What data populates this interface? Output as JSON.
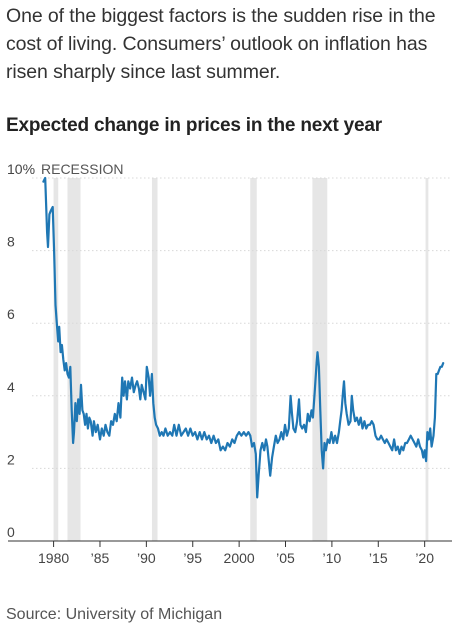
{
  "intro_text": "One of the biggest factors is the sudden rise in the cost of living. Consumers’ outlook on inflation has risen sharply since last summer.",
  "source": "Source: University of Michigan",
  "chart_data": {
    "type": "line",
    "title": "Expected change in prices in the next year",
    "xlabel": "",
    "ylabel": "",
    "ylim": [
      0,
      10
    ],
    "xlim": [
      1978.75,
      2022.3
    ],
    "y_ticks": [
      {
        "value": 0,
        "label": "0"
      },
      {
        "value": 2,
        "label": "2"
      },
      {
        "value": 4,
        "label": "4"
      },
      {
        "value": 6,
        "label": "6"
      },
      {
        "value": 8,
        "label": "8"
      },
      {
        "value": 10,
        "label": "10%"
      }
    ],
    "x_ticks": [
      {
        "value": 1980,
        "label": "1980"
      },
      {
        "value": 1985,
        "label": "’85"
      },
      {
        "value": 1990,
        "label": "’90"
      },
      {
        "value": 1995,
        "label": "’95"
      },
      {
        "value": 2000,
        "label": "2000"
      },
      {
        "value": 2005,
        "label": "’05"
      },
      {
        "value": 2010,
        "label": "’10"
      },
      {
        "value": 2015,
        "label": "’15"
      },
      {
        "value": 2020,
        "label": "’20"
      }
    ],
    "recession_label": "RECESSION",
    "recessions": [
      [
        1980.0,
        1980.5
      ],
      [
        1981.5,
        1982.9
      ],
      [
        1990.6,
        1991.2
      ],
      [
        2001.2,
        2001.9
      ],
      [
        2007.9,
        2009.5
      ],
      [
        2020.1,
        2020.4
      ]
    ],
    "grid": true,
    "line_color": "#1f77b4",
    "recession_color": "#e6e6e6",
    "series": [
      {
        "values": [
          [
            1978.9,
            9.9
          ],
          [
            1979.1,
            10.0
          ],
          [
            1979.3,
            8.5
          ],
          [
            1979.4,
            8.1
          ],
          [
            1979.55,
            9.0
          ],
          [
            1979.7,
            9.1
          ],
          [
            1979.9,
            9.2
          ],
          [
            1980.05,
            8.0
          ],
          [
            1980.2,
            6.5
          ],
          [
            1980.35,
            6.0
          ],
          [
            1980.5,
            5.5
          ],
          [
            1980.6,
            5.9
          ],
          [
            1980.75,
            5.2
          ],
          [
            1980.9,
            5.4
          ],
          [
            1981.05,
            5.0
          ],
          [
            1981.2,
            4.7
          ],
          [
            1981.35,
            4.9
          ],
          [
            1981.5,
            4.6
          ],
          [
            1981.65,
            4.5
          ],
          [
            1981.8,
            4.8
          ],
          [
            1981.95,
            3.6
          ],
          [
            1982.1,
            2.7
          ],
          [
            1982.2,
            3.0
          ],
          [
            1982.35,
            3.8
          ],
          [
            1982.5,
            3.3
          ],
          [
            1982.65,
            3.9
          ],
          [
            1982.8,
            3.5
          ],
          [
            1982.95,
            4.3
          ],
          [
            1983.1,
            3.6
          ],
          [
            1983.25,
            3.5
          ],
          [
            1983.4,
            3.2
          ],
          [
            1983.55,
            3.5
          ],
          [
            1983.7,
            3.1
          ],
          [
            1983.85,
            3.4
          ],
          [
            1984.0,
            3.3
          ],
          [
            1984.2,
            2.9
          ],
          [
            1984.35,
            3.3
          ],
          [
            1984.55,
            3.0
          ],
          [
            1984.75,
            3.2
          ],
          [
            1985.0,
            2.8
          ],
          [
            1985.2,
            3.1
          ],
          [
            1985.4,
            2.9
          ],
          [
            1985.6,
            3.2
          ],
          [
            1985.8,
            3.0
          ],
          [
            1986.0,
            2.9
          ],
          [
            1986.2,
            3.3
          ],
          [
            1986.4,
            3.2
          ],
          [
            1986.6,
            3.5
          ],
          [
            1986.8,
            3.3
          ],
          [
            1987.0,
            3.8
          ],
          [
            1987.2,
            3.4
          ],
          [
            1987.4,
            4.5
          ],
          [
            1987.55,
            4.0
          ],
          [
            1987.7,
            4.4
          ],
          [
            1987.9,
            3.9
          ],
          [
            1988.05,
            4.4
          ],
          [
            1988.25,
            4.2
          ],
          [
            1988.45,
            4.5
          ],
          [
            1988.65,
            4.1
          ],
          [
            1988.85,
            4.3
          ],
          [
            1989.0,
            4.4
          ],
          [
            1989.2,
            4.2
          ],
          [
            1989.35,
            3.9
          ],
          [
            1989.5,
            4.3
          ],
          [
            1989.7,
            4.1
          ],
          [
            1989.9,
            3.9
          ],
          [
            1990.05,
            4.8
          ],
          [
            1990.25,
            4.5
          ],
          [
            1990.4,
            4.0
          ],
          [
            1990.6,
            4.6
          ],
          [
            1990.75,
            3.8
          ],
          [
            1990.9,
            3.4
          ],
          [
            1991.05,
            3.2
          ],
          [
            1991.25,
            3.1
          ],
          [
            1991.45,
            2.9
          ],
          [
            1991.65,
            3.0
          ],
          [
            1991.85,
            2.9
          ],
          [
            1992.05,
            3.1
          ],
          [
            1992.3,
            2.9
          ],
          [
            1992.55,
            3.0
          ],
          [
            1992.8,
            2.9
          ],
          [
            1993.0,
            3.2
          ],
          [
            1993.25,
            2.9
          ],
          [
            1993.5,
            3.2
          ],
          [
            1993.75,
            2.9
          ],
          [
            1994.0,
            3.0
          ],
          [
            1994.25,
            3.1
          ],
          [
            1994.5,
            2.9
          ],
          [
            1994.75,
            3.1
          ],
          [
            1995.0,
            2.9
          ],
          [
            1995.25,
            3.0
          ],
          [
            1995.5,
            2.8
          ],
          [
            1995.75,
            3.0
          ],
          [
            1996.0,
            2.8
          ],
          [
            1996.25,
            3.0
          ],
          [
            1996.5,
            2.8
          ],
          [
            1996.75,
            2.9
          ],
          [
            1997.0,
            2.7
          ],
          [
            1997.25,
            2.9
          ],
          [
            1997.5,
            2.7
          ],
          [
            1997.75,
            2.8
          ],
          [
            1998.0,
            2.5
          ],
          [
            1998.25,
            2.6
          ],
          [
            1998.5,
            2.5
          ],
          [
            1998.75,
            2.7
          ],
          [
            1999.0,
            2.6
          ],
          [
            1999.25,
            2.8
          ],
          [
            1999.5,
            2.7
          ],
          [
            1999.75,
            2.9
          ],
          [
            2000.0,
            3.0
          ],
          [
            2000.25,
            2.9
          ],
          [
            2000.5,
            3.0
          ],
          [
            2000.75,
            2.9
          ],
          [
            2001.0,
            3.0
          ],
          [
            2001.2,
            2.9
          ],
          [
            2001.4,
            2.6
          ],
          [
            2001.6,
            2.7
          ],
          [
            2001.8,
            2.4
          ],
          [
            2001.95,
            1.2
          ],
          [
            2002.1,
            1.8
          ],
          [
            2002.3,
            2.5
          ],
          [
            2002.5,
            2.7
          ],
          [
            2002.7,
            2.5
          ],
          [
            2002.9,
            2.8
          ],
          [
            2003.05,
            2.6
          ],
          [
            2003.2,
            2.2
          ],
          [
            2003.35,
            1.8
          ],
          [
            2003.55,
            2.3
          ],
          [
            2003.75,
            2.6
          ],
          [
            2003.95,
            2.9
          ],
          [
            2004.15,
            2.7
          ],
          [
            2004.35,
            2.8
          ],
          [
            2004.55,
            3.0
          ],
          [
            2004.75,
            2.8
          ],
          [
            2004.95,
            3.2
          ],
          [
            2005.15,
            2.9
          ],
          [
            2005.35,
            3.1
          ],
          [
            2005.55,
            4.0
          ],
          [
            2005.7,
            3.5
          ],
          [
            2005.85,
            3.1
          ],
          [
            2006.05,
            3.0
          ],
          [
            2006.25,
            3.3
          ],
          [
            2006.45,
            3.9
          ],
          [
            2006.6,
            3.2
          ],
          [
            2006.8,
            3.1
          ],
          [
            2007.0,
            3.2
          ],
          [
            2007.2,
            3.0
          ],
          [
            2007.4,
            3.5
          ],
          [
            2007.6,
            3.3
          ],
          [
            2007.8,
            3.6
          ],
          [
            2007.95,
            3.4
          ],
          [
            2008.15,
            4.1
          ],
          [
            2008.35,
            4.9
          ],
          [
            2008.45,
            5.2
          ],
          [
            2008.6,
            4.8
          ],
          [
            2008.75,
            3.6
          ],
          [
            2008.9,
            2.5
          ],
          [
            2009.05,
            2.0
          ],
          [
            2009.2,
            2.7
          ],
          [
            2009.35,
            2.5
          ],
          [
            2009.55,
            2.8
          ],
          [
            2009.75,
            2.7
          ],
          [
            2009.95,
            3.0
          ],
          [
            2010.15,
            2.7
          ],
          [
            2010.35,
            2.9
          ],
          [
            2010.55,
            2.7
          ],
          [
            2010.75,
            3.0
          ],
          [
            2010.9,
            3.3
          ],
          [
            2011.05,
            3.6
          ],
          [
            2011.2,
            4.1
          ],
          [
            2011.3,
            4.4
          ],
          [
            2011.45,
            3.8
          ],
          [
            2011.6,
            3.5
          ],
          [
            2011.8,
            3.2
          ],
          [
            2012.0,
            3.3
          ],
          [
            2012.15,
            4.0
          ],
          [
            2012.3,
            3.6
          ],
          [
            2012.5,
            3.3
          ],
          [
            2012.7,
            3.4
          ],
          [
            2012.9,
            3.2
          ],
          [
            2013.1,
            3.4
          ],
          [
            2013.3,
            3.1
          ],
          [
            2013.5,
            3.3
          ],
          [
            2013.7,
            3.1
          ],
          [
            2013.9,
            3.2
          ],
          [
            2014.1,
            3.2
          ],
          [
            2014.3,
            3.3
          ],
          [
            2014.5,
            3.2
          ],
          [
            2014.7,
            2.9
          ],
          [
            2014.9,
            2.8
          ],
          [
            2015.1,
            2.8
          ],
          [
            2015.3,
            2.9
          ],
          [
            2015.5,
            2.8
          ],
          [
            2015.7,
            2.7
          ],
          [
            2015.9,
            2.8
          ],
          [
            2016.1,
            2.7
          ],
          [
            2016.3,
            2.6
          ],
          [
            2016.5,
            2.5
          ],
          [
            2016.7,
            2.8
          ],
          [
            2016.9,
            2.5
          ],
          [
            2017.1,
            2.6
          ],
          [
            2017.3,
            2.4
          ],
          [
            2017.5,
            2.6
          ],
          [
            2017.7,
            2.5
          ],
          [
            2017.9,
            2.7
          ],
          [
            2018.1,
            2.7
          ],
          [
            2018.3,
            2.8
          ],
          [
            2018.5,
            2.9
          ],
          [
            2018.7,
            2.8
          ],
          [
            2018.9,
            2.7
          ],
          [
            2019.1,
            2.6
          ],
          [
            2019.3,
            2.8
          ],
          [
            2019.5,
            2.6
          ],
          [
            2019.7,
            2.5
          ],
          [
            2019.85,
            2.3
          ],
          [
            2020.0,
            2.5
          ],
          [
            2020.15,
            2.2
          ],
          [
            2020.3,
            3.0
          ],
          [
            2020.45,
            2.8
          ],
          [
            2020.6,
            3.1
          ],
          [
            2020.75,
            2.6
          ],
          [
            2020.95,
            2.9
          ],
          [
            2021.1,
            3.4
          ],
          [
            2021.25,
            4.6
          ],
          [
            2021.4,
            4.6
          ],
          [
            2021.55,
            4.7
          ],
          [
            2021.7,
            4.8
          ],
          [
            2021.85,
            4.8
          ],
          [
            2022.0,
            4.9
          ]
        ]
      }
    ]
  }
}
